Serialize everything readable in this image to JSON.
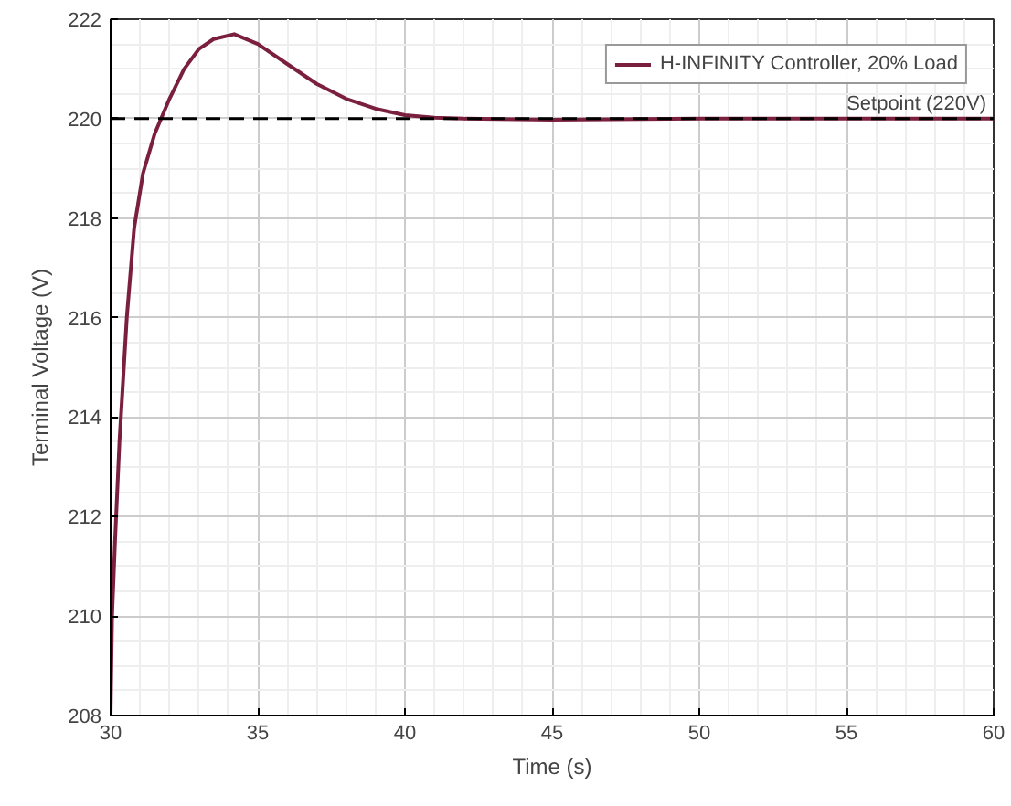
{
  "chart_data": {
    "type": "line",
    "xlabel": "Time (s)",
    "ylabel": "Terminal Voltage (V)",
    "xlim": [
      30,
      60
    ],
    "ylim": [
      208,
      222
    ],
    "xticks": [
      30,
      35,
      40,
      45,
      50,
      55,
      60
    ],
    "yticks": [
      208,
      210,
      212,
      214,
      216,
      218,
      220,
      222
    ],
    "grid": true,
    "legend": "top right",
    "line_style": "solid",
    "series": [
      {
        "name": "H-INFINITY Controller, 20% Load",
        "color": "#7b1f3f",
        "x": [
          30,
          30.05,
          30.15,
          30.3,
          30.55,
          30.8,
          31.1,
          31.5,
          32,
          32.5,
          33,
          33.5,
          34.2,
          35,
          36,
          37,
          38,
          39,
          40,
          41,
          42,
          45,
          50,
          60
        ],
        "values": [
          208,
          210,
          211.5,
          213.5,
          216,
          217.8,
          218.9,
          219.7,
          220.4,
          221,
          221.4,
          221.6,
          221.7,
          221.5,
          221.1,
          220.7,
          220.4,
          220.2,
          220.07,
          220.02,
          220,
          219.98,
          220,
          220
        ]
      }
    ],
    "ref_lines": [
      {
        "axis": "y",
        "value": 220,
        "label": "Setpoint (220V)",
        "color": "#000000",
        "line_style": "dashed"
      }
    ]
  }
}
